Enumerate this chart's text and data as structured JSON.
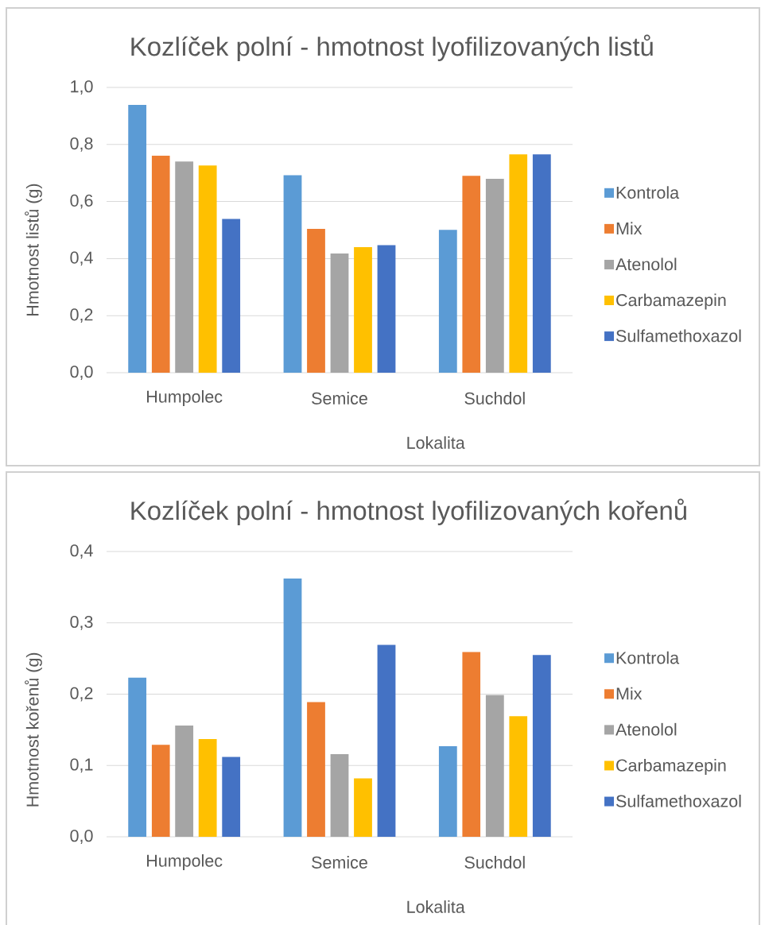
{
  "chart_data": [
    {
      "type": "bar",
      "title": "Kozlíček polní - hmotnost lyofilizovaných listů",
      "xlabel": "Lokalita",
      "ylabel": "Hmotnost listů (g)",
      "categories": [
        "Humpolec",
        "Semice",
        "Suchdol"
      ],
      "series": [
        {
          "name": "Kontrola",
          "color": "#5b9bd5",
          "values": [
            0.939,
            0.692,
            0.501
          ]
        },
        {
          "name": "Mix",
          "color": "#ed7d31",
          "values": [
            0.761,
            0.504,
            0.69
          ]
        },
        {
          "name": "Atenolol",
          "color": "#a5a5a5",
          "values": [
            0.74,
            0.418,
            0.68
          ]
        },
        {
          "name": "Carbamazepin",
          "color": "#ffc000",
          "values": [
            0.726,
            0.44,
            0.765
          ]
        },
        {
          "name": "Sulfamethoxazol",
          "color": "#4472c4",
          "values": [
            0.539,
            0.447,
            0.765
          ]
        }
      ],
      "ylim": [
        0,
        1.0
      ],
      "yticks": [
        {
          "value": 0,
          "label": "0,0"
        },
        {
          "value": 0.2,
          "label": "0,2"
        },
        {
          "value": 0.4,
          "label": "0,4"
        },
        {
          "value": 0.6,
          "label": "0,6"
        },
        {
          "value": 0.8,
          "label": "0,8"
        },
        {
          "value": 1.0,
          "label": "1,0"
        }
      ],
      "grid": "y",
      "legend": "right"
    },
    {
      "type": "bar",
      "title": "Kozlíček polní - hmotnost lyofilizovaných kořenů",
      "xlabel": "Lokalita",
      "ylabel": "Hmotnost kořenů (g)",
      "categories": [
        "Humpolec",
        "Semice",
        "Suchdol"
      ],
      "series": [
        {
          "name": "Kontrola",
          "color": "#5b9bd5",
          "values": [
            0.223,
            0.362,
            0.127
          ]
        },
        {
          "name": "Mix",
          "color": "#ed7d31",
          "values": [
            0.129,
            0.189,
            0.259
          ]
        },
        {
          "name": "Atenolol",
          "color": "#a5a5a5",
          "values": [
            0.156,
            0.116,
            0.199
          ]
        },
        {
          "name": "Carbamazepin",
          "color": "#ffc000",
          "values": [
            0.137,
            0.082,
            0.169
          ]
        },
        {
          "name": "Sulfamethoxazol",
          "color": "#4472c4",
          "values": [
            0.112,
            0.269,
            0.255
          ]
        }
      ],
      "ylim": [
        0,
        0.4
      ],
      "yticks": [
        {
          "value": 0,
          "label": "0,0"
        },
        {
          "value": 0.1,
          "label": "0,1"
        },
        {
          "value": 0.2,
          "label": "0,2"
        },
        {
          "value": 0.3,
          "label": "0,3"
        },
        {
          "value": 0.4,
          "label": "0,4"
        }
      ],
      "grid": "y",
      "legend": "right"
    }
  ]
}
